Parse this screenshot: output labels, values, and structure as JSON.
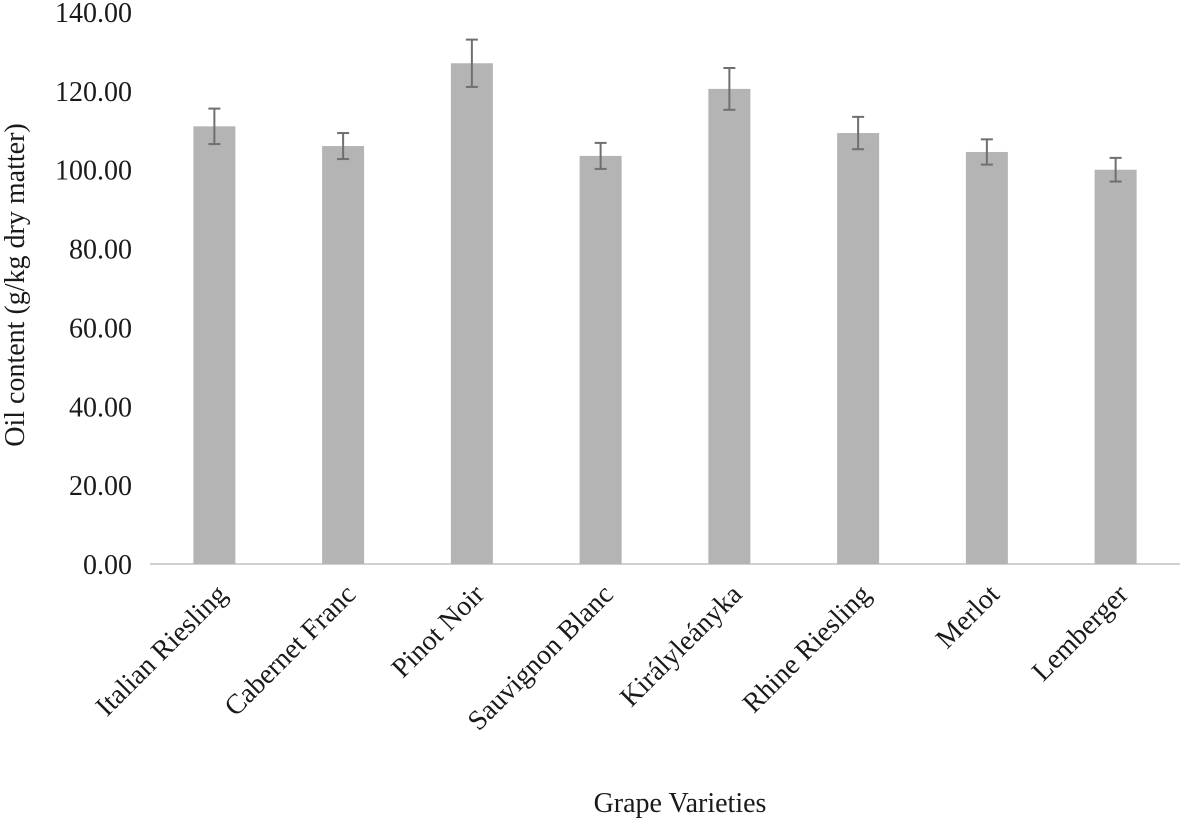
{
  "chart_data": {
    "type": "bar",
    "title": "",
    "xlabel": "Grape Varieties",
    "ylabel": "Oil content (g/kg dry matter)",
    "ylim": [
      0,
      140
    ],
    "yticks": [
      0,
      20,
      40,
      60,
      80,
      100,
      120,
      140
    ],
    "ytick_labels": [
      "0.00",
      "20.00",
      "40.00",
      "60.00",
      "80.00",
      "100.00",
      "120.00",
      "140.00"
    ],
    "grid": false,
    "legend": "none",
    "categories": [
      "Italian Riesling",
      "Cabernet Franc",
      "Pinot Noir",
      "Sauvignon Blanc",
      "Királyleányka",
      "Rhine Riesling",
      "Merlot",
      "Lemberger"
    ],
    "values": [
      111.0,
      106.0,
      127.0,
      103.5,
      120.5,
      109.3,
      104.5,
      100.0
    ],
    "error": [
      4.5,
      3.3,
      6.0,
      3.3,
      5.3,
      4.1,
      3.2,
      3.0
    ],
    "bar_color": "#b4b4b4",
    "error_color": "#6f6f6f",
    "axis_color": "#d0d0d0"
  }
}
